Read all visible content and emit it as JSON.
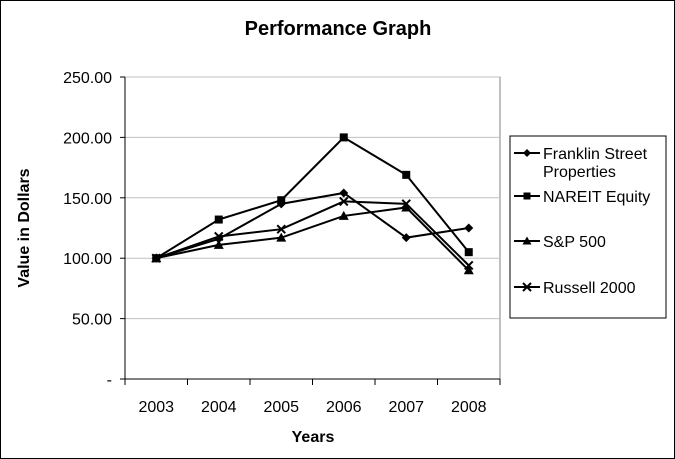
{
  "chart_data": {
    "type": "line",
    "title": "Performance Graph",
    "xlabel": "Years",
    "ylabel": "Value in Dollars",
    "categories": [
      "2003",
      "2004",
      "2005",
      "2006",
      "2007",
      "2008"
    ],
    "ylim": [
      0,
      250
    ],
    "ytick_labels": [
      "-",
      "50.00",
      "100.00",
      "150.00",
      "200.00",
      "250.00"
    ],
    "grid": true,
    "legend_position": "right",
    "series": [
      {
        "name": "Franklin Street Properties",
        "marker": "diamond",
        "values": [
          100,
          116,
          145,
          154,
          117,
          125
        ]
      },
      {
        "name": "NAREIT Equity",
        "marker": "square",
        "values": [
          100,
          132,
          148,
          200,
          169,
          105
        ]
      },
      {
        "name": "S&P 500",
        "marker": "triangle",
        "values": [
          100,
          111,
          117,
          135,
          142,
          90
        ]
      },
      {
        "name": "Russell 2000",
        "marker": "x",
        "values": [
          100,
          118,
          124,
          147,
          145,
          94
        ]
      }
    ],
    "legend": {
      "franklin_line1": "Franklin Street",
      "franklin_line2": "Properties",
      "nareit": "NAREIT Equity",
      "sp500": "S&P 500",
      "russell": "Russell 2000"
    },
    "line_color": "#000000",
    "grid_color": "#c0c0c0"
  }
}
